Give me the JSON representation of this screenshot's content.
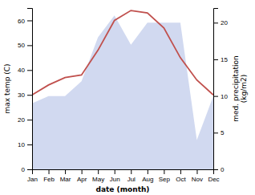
{
  "chart_data": {
    "type": "line",
    "categories": [
      "Jan",
      "Feb",
      "Mar",
      "Apr",
      "May",
      "Jun",
      "Jul",
      "Aug",
      "Sep",
      "Oct",
      "Nov",
      "Dec"
    ],
    "xlabel": "date (month)",
    "ylabel": "max temp (C)",
    "y2label": "med. precipitation\n(kg/m2)",
    "series": [
      {
        "type": "area",
        "axis": "y2",
        "color": "#b8c4e8",
        "values": [
          9,
          10,
          10,
          12,
          18,
          21,
          17,
          20,
          20,
          20,
          4,
          10
        ]
      },
      {
        "type": "line",
        "color": "#c0504d",
        "values": [
          30,
          34,
          37,
          38,
          48,
          60,
          64,
          63,
          57,
          45,
          36,
          30
        ]
      }
    ],
    "ylim": [
      0,
      65
    ],
    "yticks": [
      0,
      10,
      20,
      30,
      40,
      50,
      60
    ],
    "y2lim": [
      0,
      22
    ],
    "y2ticks": [
      0,
      5,
      10,
      15,
      20
    ],
    "grid": false
  }
}
